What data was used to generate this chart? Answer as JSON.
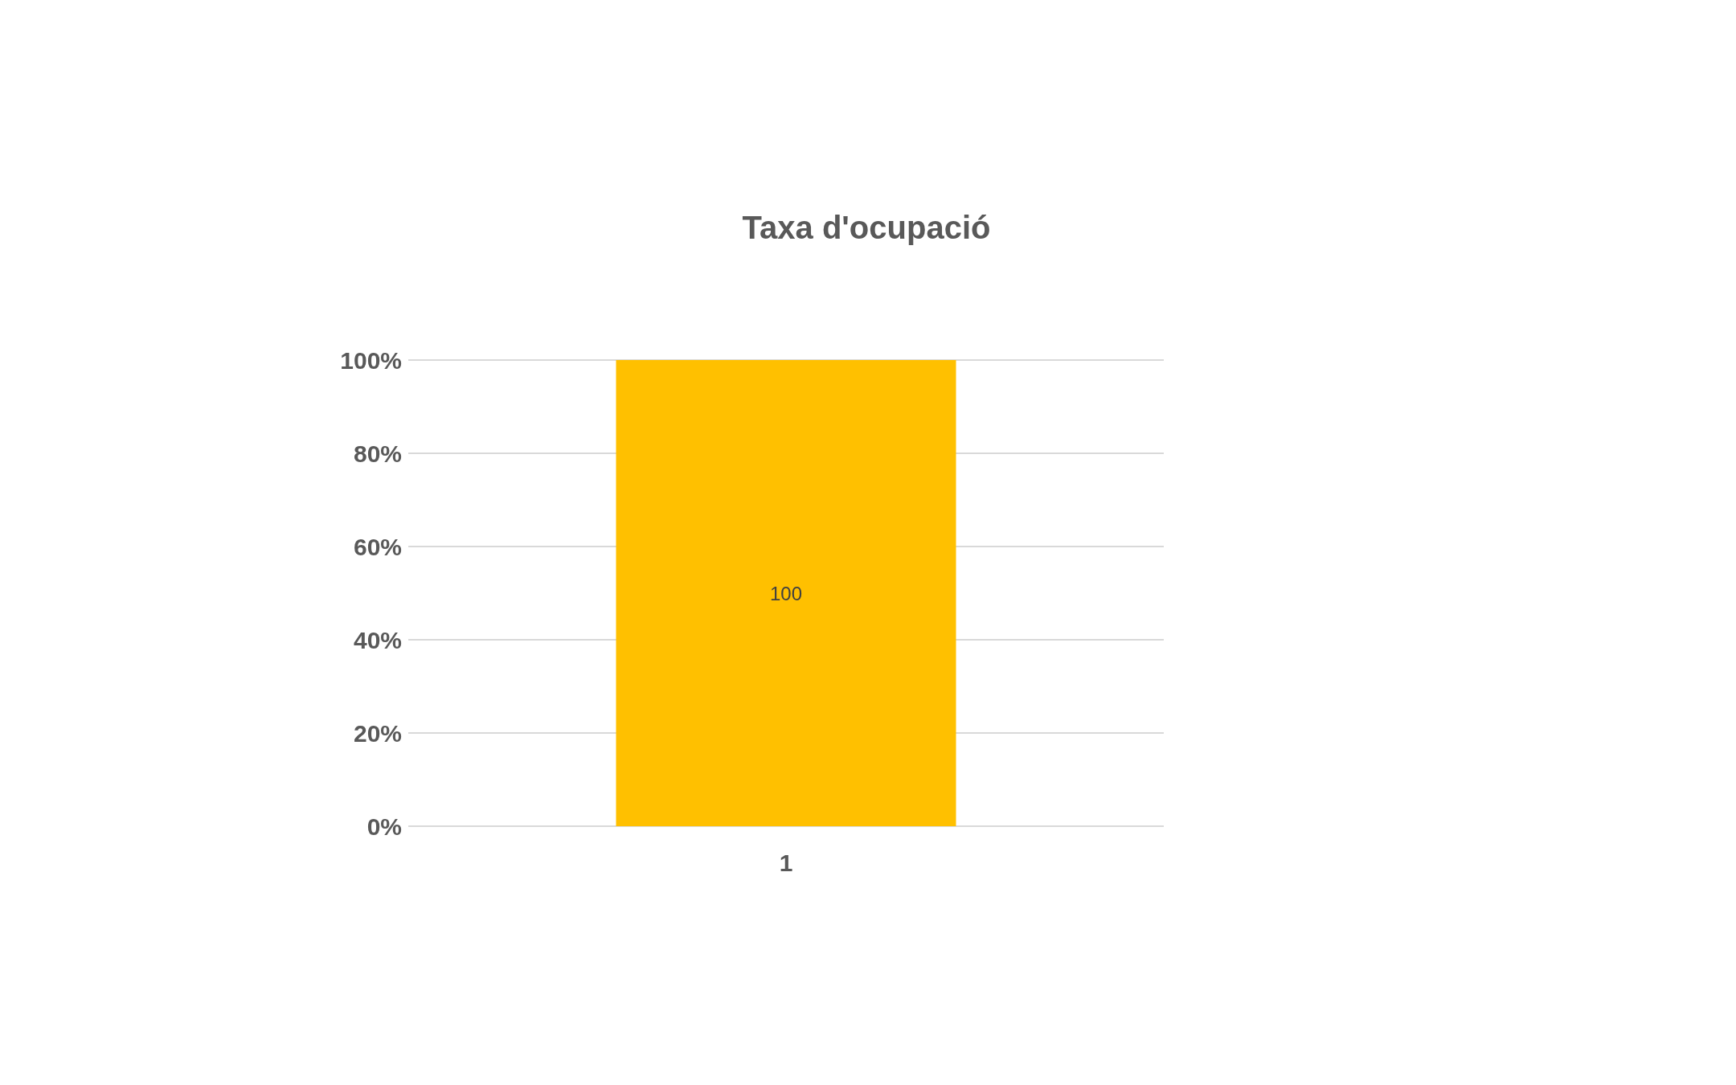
{
  "chart_data": {
    "type": "bar",
    "title": "Taxa d'ocupació",
    "categories": [
      "1"
    ],
    "values": [
      100
    ],
    "color": "#ffc000",
    "ylim": [
      0,
      100
    ],
    "yticks": [
      {
        "value": 0,
        "label": "0%"
      },
      {
        "value": 20,
        "label": "20%"
      },
      {
        "value": 40,
        "label": "40%"
      },
      {
        "value": 60,
        "label": "60%"
      },
      {
        "value": 80,
        "label": "80%"
      },
      {
        "value": 100,
        "label": "100%"
      }
    ],
    "grid": "y",
    "data_labels": true
  }
}
